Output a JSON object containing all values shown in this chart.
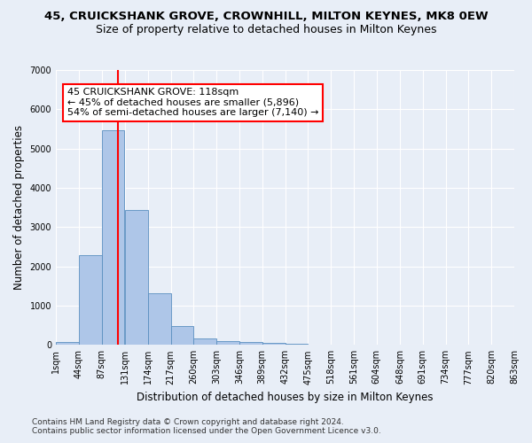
{
  "title": "45, CRUICKSHANK GROVE, CROWNHILL, MILTON KEYNES, MK8 0EW",
  "subtitle": "Size of property relative to detached houses in Milton Keynes",
  "xlabel": "Distribution of detached houses by size in Milton Keynes",
  "ylabel": "Number of detached properties",
  "bin_edges": [
    1,
    44,
    87,
    131,
    174,
    217,
    260,
    303,
    346,
    389,
    432,
    475,
    518,
    561,
    604,
    648,
    691,
    734,
    777,
    820,
    863
  ],
  "bin_labels": [
    "1sqm",
    "44sqm",
    "87sqm",
    "131sqm",
    "174sqm",
    "217sqm",
    "260sqm",
    "303sqm",
    "346sqm",
    "389sqm",
    "432sqm",
    "475sqm",
    "518sqm",
    "561sqm",
    "604sqm",
    "648sqm",
    "691sqm",
    "734sqm",
    "777sqm",
    "820sqm",
    "863sqm"
  ],
  "bar_heights": [
    80,
    2280,
    5460,
    3430,
    1310,
    470,
    165,
    90,
    65,
    55,
    30,
    15,
    10,
    5,
    3,
    2,
    1,
    1,
    0,
    0
  ],
  "bar_color": "#aec6e8",
  "bar_edge_color": "#5a8fc0",
  "property_line_x": 118,
  "property_line_color": "red",
  "annotation_text": "45 CRUICKSHANK GROVE: 118sqm\n← 45% of detached houses are smaller (5,896)\n54% of semi-detached houses are larger (7,140) →",
  "annotation_box_color": "white",
  "annotation_box_edge_color": "red",
  "ylim": [
    0,
    7000
  ],
  "yticks": [
    0,
    1000,
    2000,
    3000,
    4000,
    5000,
    6000,
    7000
  ],
  "background_color": "#e8eef7",
  "grid_color": "white",
  "footer_line1": "Contains HM Land Registry data © Crown copyright and database right 2024.",
  "footer_line2": "Contains public sector information licensed under the Open Government Licence v3.0.",
  "title_fontsize": 9.5,
  "subtitle_fontsize": 9,
  "axis_label_fontsize": 8.5,
  "tick_fontsize": 7,
  "annotation_fontsize": 8,
  "footer_fontsize": 6.5
}
